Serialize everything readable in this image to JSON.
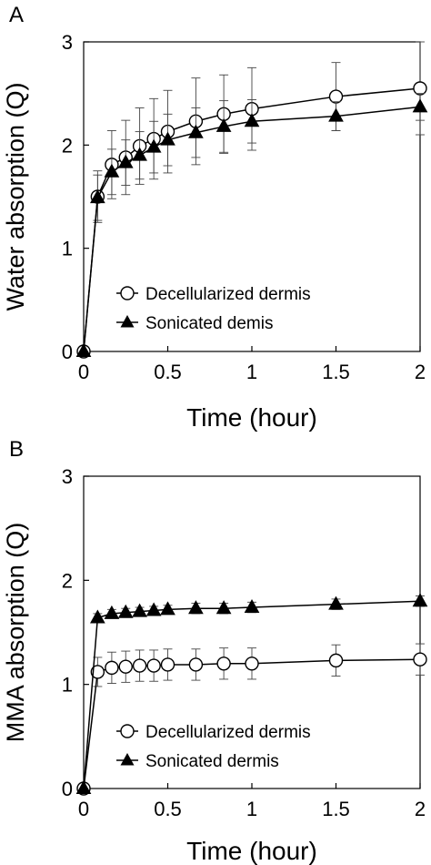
{
  "chart_data": [
    {
      "panel": "A",
      "type": "line",
      "xlabel": "Time (hour)",
      "ylabel": "Water absorption (Q)",
      "xlim": [
        0,
        2
      ],
      "ylim": [
        0,
        3
      ],
      "xticks": [
        "0",
        "0.5",
        "1",
        "1.5",
        "2"
      ],
      "yticks": [
        "0",
        "1",
        "2",
        "3"
      ],
      "grid": false,
      "legend": "center",
      "x": [
        0,
        0.083,
        0.167,
        0.25,
        0.333,
        0.417,
        0.5,
        0.667,
        0.833,
        1,
        1.5,
        2
      ],
      "series": [
        {
          "name": "Decellularized dermis",
          "marker": "circle-open",
          "values": [
            0,
            1.5,
            1.81,
            1.88,
            1.99,
            2.06,
            2.13,
            2.23,
            2.3,
            2.35,
            2.47,
            2.55
          ],
          "errors": [
            0,
            0.25,
            0.33,
            0.36,
            0.37,
            0.39,
            0.4,
            0.42,
            0.38,
            0.4,
            0.33,
            0.45
          ]
        },
        {
          "name": "Sonicated demis",
          "marker": "triangle-filled",
          "values": [
            0,
            1.49,
            1.74,
            1.83,
            1.9,
            1.98,
            2.05,
            2.12,
            2.18,
            2.23,
            2.28,
            2.37
          ],
          "errors": [
            0,
            0.22,
            0.22,
            0.22,
            0.23,
            0.25,
            0.25,
            0.24,
            0.25,
            0.21,
            0.14,
            0.13
          ]
        }
      ]
    },
    {
      "panel": "B",
      "type": "line",
      "xlabel": "Time (hour)",
      "ylabel": "MMA absorption (Q)",
      "xlim": [
        0,
        2
      ],
      "ylim": [
        0,
        3
      ],
      "xticks": [
        "0",
        "0.5",
        "1",
        "1.5",
        "2"
      ],
      "yticks": [
        "0",
        "1",
        "2",
        "3"
      ],
      "grid": false,
      "legend": "bottom-center",
      "x": [
        0,
        0.083,
        0.167,
        0.25,
        0.333,
        0.417,
        0.5,
        0.667,
        0.833,
        1,
        1.5,
        2
      ],
      "series": [
        {
          "name": "Decellularized dermis",
          "marker": "circle-open",
          "values": [
            0,
            1.12,
            1.16,
            1.17,
            1.18,
            1.18,
            1.19,
            1.19,
            1.2,
            1.2,
            1.23,
            1.24
          ],
          "errors": [
            0,
            0.14,
            0.15,
            0.15,
            0.15,
            0.15,
            0.15,
            0.15,
            0.15,
            0.15,
            0.15,
            0.15
          ]
        },
        {
          "name": "Sonicated dermis",
          "marker": "triangle-filled",
          "values": [
            0,
            1.64,
            1.68,
            1.69,
            1.7,
            1.71,
            1.72,
            1.73,
            1.73,
            1.74,
            1.77,
            1.8
          ],
          "errors": [
            0,
            0.04,
            0.04,
            0.04,
            0.04,
            0.04,
            0.04,
            0.05,
            0.05,
            0.05,
            0.05,
            0.05
          ]
        }
      ]
    }
  ]
}
